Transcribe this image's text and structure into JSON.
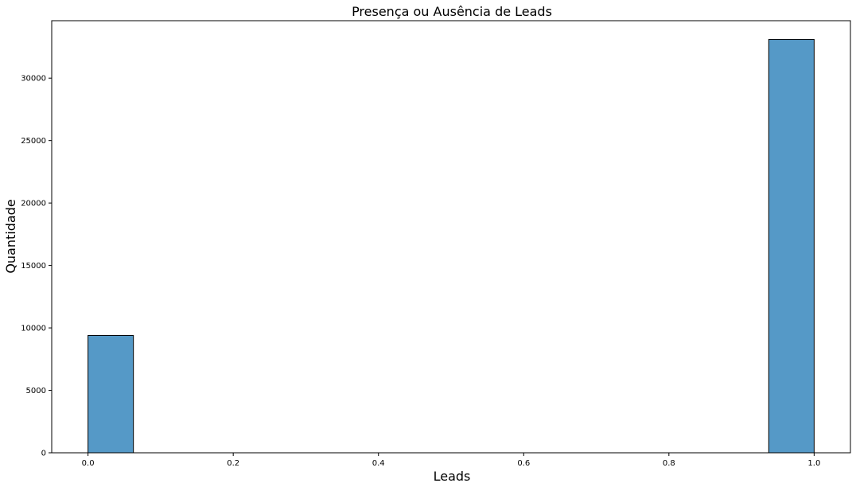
{
  "chart_data": {
    "type": "bar",
    "title": "Presença ou Ausência de Leads",
    "xlabel": "Leads",
    "ylabel": "Quantidade",
    "bin_width": 0.0625,
    "bars": [
      {
        "x_start": 0.0,
        "x_end": 0.0625,
        "value": 9400
      },
      {
        "x_start": 0.9375,
        "x_end": 1.0,
        "value": 33100
      }
    ],
    "xlim": [
      -0.05,
      1.05
    ],
    "ylim": [
      0,
      34600
    ],
    "x_ticks": [
      {
        "value": 0.0,
        "label": "0.0"
      },
      {
        "value": 0.2,
        "label": "0.2"
      },
      {
        "value": 0.4,
        "label": "0.4"
      },
      {
        "value": 0.6,
        "label": "0.6"
      },
      {
        "value": 0.8,
        "label": "0.8"
      },
      {
        "value": 1.0,
        "label": "1.0"
      }
    ],
    "y_ticks": [
      {
        "value": 0,
        "label": "0"
      },
      {
        "value": 5000,
        "label": "5000"
      },
      {
        "value": 10000,
        "label": "10000"
      },
      {
        "value": 15000,
        "label": "15000"
      },
      {
        "value": 20000,
        "label": "20000"
      },
      {
        "value": 25000,
        "label": "25000"
      },
      {
        "value": 30000,
        "label": "30000"
      }
    ],
    "grid": false,
    "bar_color": "#5599c7",
    "bar_edge_color": "#000000"
  }
}
